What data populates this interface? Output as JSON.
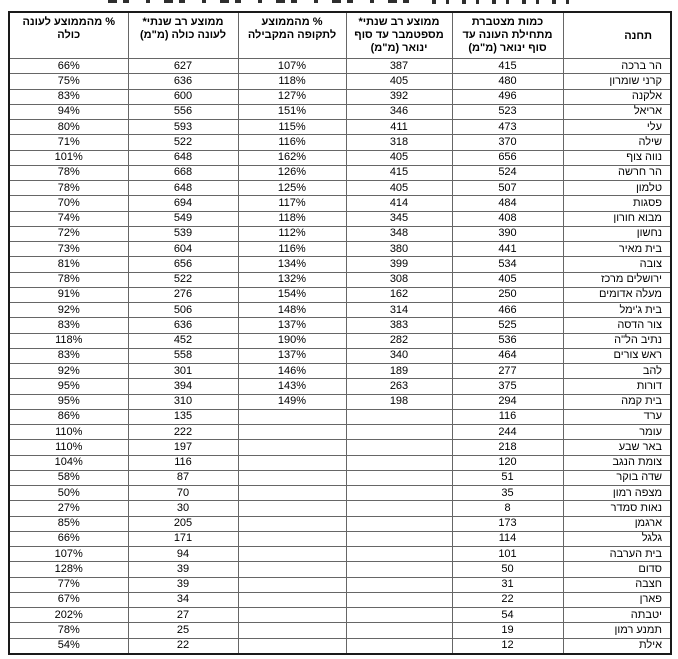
{
  "colors": {
    "background": "#ffffff",
    "text": "#000000",
    "grid_border": "#666666",
    "outer_border": "#1a1a1a"
  },
  "table": {
    "columns": [
      {
        "id": "station",
        "label": "תחנה"
      },
      {
        "id": "accumulated",
        "label": "כמות מצטברת\nמתחילת העונה עד\nסוף ינואר (מ\"מ)"
      },
      {
        "id": "avg_sep_jan",
        "label": "ממוצע רב שנתי*\nמספטמבר עד סוף\nינואר (מ\"מ)"
      },
      {
        "id": "pct_period",
        "label": "% מהממוצע\nלתקופה המקבילה"
      },
      {
        "id": "avg_season",
        "label": "ממוצע רב שנתי*\nלעונה כולה (מ\"מ)"
      },
      {
        "id": "pct_season",
        "label": "% מהממוצע לעונה\nכולה"
      }
    ],
    "rows": [
      {
        "station": "הר ברכה",
        "accumulated": "415",
        "avg_sep_jan": "387",
        "pct_period": "107%",
        "avg_season": "627",
        "pct_season": "66%"
      },
      {
        "station": "קרני שומרון",
        "accumulated": "480",
        "avg_sep_jan": "405",
        "pct_period": "118%",
        "avg_season": "636",
        "pct_season": "75%"
      },
      {
        "station": "אלקנה",
        "accumulated": "496",
        "avg_sep_jan": "392",
        "pct_period": "127%",
        "avg_season": "600",
        "pct_season": "83%"
      },
      {
        "station": "אריאל",
        "accumulated": "523",
        "avg_sep_jan": "346",
        "pct_period": "151%",
        "avg_season": "556",
        "pct_season": "94%"
      },
      {
        "station": "עלי",
        "accumulated": "473",
        "avg_sep_jan": "411",
        "pct_period": "115%",
        "avg_season": "593",
        "pct_season": "80%"
      },
      {
        "station": "שילה",
        "accumulated": "370",
        "avg_sep_jan": "318",
        "pct_period": "116%",
        "avg_season": "522",
        "pct_season": "71%"
      },
      {
        "station": "נווה צוף",
        "accumulated": "656",
        "avg_sep_jan": "405",
        "pct_period": "162%",
        "avg_season": "648",
        "pct_season": "101%"
      },
      {
        "station": "הר חרשה",
        "accumulated": "524",
        "avg_sep_jan": "415",
        "pct_period": "126%",
        "avg_season": "668",
        "pct_season": "78%"
      },
      {
        "station": "טלמון",
        "accumulated": "507",
        "avg_sep_jan": "405",
        "pct_period": "125%",
        "avg_season": "648",
        "pct_season": "78%"
      },
      {
        "station": "פסגות",
        "accumulated": "484",
        "avg_sep_jan": "414",
        "pct_period": "117%",
        "avg_season": "694",
        "pct_season": "70%"
      },
      {
        "station": "מבוא חורון",
        "accumulated": "408",
        "avg_sep_jan": "345",
        "pct_period": "118%",
        "avg_season": "549",
        "pct_season": "74%"
      },
      {
        "station": "נחשון",
        "accumulated": "390",
        "avg_sep_jan": "348",
        "pct_period": "112%",
        "avg_season": "539",
        "pct_season": "72%"
      },
      {
        "station": "בית מאיר",
        "accumulated": "441",
        "avg_sep_jan": "380",
        "pct_period": "116%",
        "avg_season": "604",
        "pct_season": "73%"
      },
      {
        "station": "צובה",
        "accumulated": "534",
        "avg_sep_jan": "399",
        "pct_period": "134%",
        "avg_season": "656",
        "pct_season": "81%"
      },
      {
        "station": "ירושלים מרכז",
        "accumulated": "405",
        "avg_sep_jan": "308",
        "pct_period": "132%",
        "avg_season": "522",
        "pct_season": "78%"
      },
      {
        "station": "מעלה אדומים",
        "accumulated": "250",
        "avg_sep_jan": "162",
        "pct_period": "154%",
        "avg_season": "276",
        "pct_season": "91%"
      },
      {
        "station": "בית ג'ימל",
        "accumulated": "466",
        "avg_sep_jan": "314",
        "pct_period": "148%",
        "avg_season": "506",
        "pct_season": "92%"
      },
      {
        "station": "צור הדסה",
        "accumulated": "525",
        "avg_sep_jan": "383",
        "pct_period": "137%",
        "avg_season": "636",
        "pct_season": "83%"
      },
      {
        "station": "נתיב הל\"ה",
        "accumulated": "536",
        "avg_sep_jan": "282",
        "pct_period": "190%",
        "avg_season": "452",
        "pct_season": "118%"
      },
      {
        "station": "ראש צורים",
        "accumulated": "464",
        "avg_sep_jan": "340",
        "pct_period": "137%",
        "avg_season": "558",
        "pct_season": "83%"
      },
      {
        "station": "להב",
        "accumulated": "277",
        "avg_sep_jan": "189",
        "pct_period": "146%",
        "avg_season": "301",
        "pct_season": "92%"
      },
      {
        "station": "דורות",
        "accumulated": "375",
        "avg_sep_jan": "263",
        "pct_period": "143%",
        "avg_season": "394",
        "pct_season": "95%"
      },
      {
        "station": "בית קמה",
        "accumulated": "294",
        "avg_sep_jan": "198",
        "pct_period": "149%",
        "avg_season": "310",
        "pct_season": "95%"
      },
      {
        "station": "ערד",
        "accumulated": "116",
        "avg_sep_jan": "",
        "pct_period": "",
        "avg_season": "135",
        "pct_season": "86%"
      },
      {
        "station": "עומר",
        "accumulated": "244",
        "avg_sep_jan": "",
        "pct_period": "",
        "avg_season": "222",
        "pct_season": "110%"
      },
      {
        "station": "באר שבע",
        "accumulated": "218",
        "avg_sep_jan": "",
        "pct_period": "",
        "avg_season": "197",
        "pct_season": "110%"
      },
      {
        "station": "צומת הנגב",
        "accumulated": "120",
        "avg_sep_jan": "",
        "pct_period": "",
        "avg_season": "116",
        "pct_season": "104%"
      },
      {
        "station": "שדה בוקר",
        "accumulated": "51",
        "avg_sep_jan": "",
        "pct_period": "",
        "avg_season": "87",
        "pct_season": "58%"
      },
      {
        "station": "מצפה רמון",
        "accumulated": "35",
        "avg_sep_jan": "",
        "pct_period": "",
        "avg_season": "70",
        "pct_season": "50%"
      },
      {
        "station": "נאות סמדר",
        "accumulated": "8",
        "avg_sep_jan": "",
        "pct_period": "",
        "avg_season": "30",
        "pct_season": "27%"
      },
      {
        "station": "ארגמן",
        "accumulated": "173",
        "avg_sep_jan": "",
        "pct_period": "",
        "avg_season": "205",
        "pct_season": "85%"
      },
      {
        "station": "גלגל",
        "accumulated": "114",
        "avg_sep_jan": "",
        "pct_period": "",
        "avg_season": "171",
        "pct_season": "66%"
      },
      {
        "station": "בית הערבה",
        "accumulated": "101",
        "avg_sep_jan": "",
        "pct_period": "",
        "avg_season": "94",
        "pct_season": "107%"
      },
      {
        "station": "סדום",
        "accumulated": "50",
        "avg_sep_jan": "",
        "pct_period": "",
        "avg_season": "39",
        "pct_season": "128%"
      },
      {
        "station": "חצבה",
        "accumulated": "31",
        "avg_sep_jan": "",
        "pct_period": "",
        "avg_season": "39",
        "pct_season": "77%"
      },
      {
        "station": "פארן",
        "accumulated": "22",
        "avg_sep_jan": "",
        "pct_period": "",
        "avg_season": "34",
        "pct_season": "67%"
      },
      {
        "station": "יטבתה",
        "accumulated": "54",
        "avg_sep_jan": "",
        "pct_period": "",
        "avg_season": "27",
        "pct_season": "202%"
      },
      {
        "station": "תמנע רמון",
        "accumulated": "19",
        "avg_sep_jan": "",
        "pct_period": "",
        "avg_season": "25",
        "pct_season": "78%"
      },
      {
        "station": "אילת",
        "accumulated": "12",
        "avg_sep_jan": "",
        "pct_period": "",
        "avg_season": "22",
        "pct_season": "54%"
      }
    ]
  }
}
